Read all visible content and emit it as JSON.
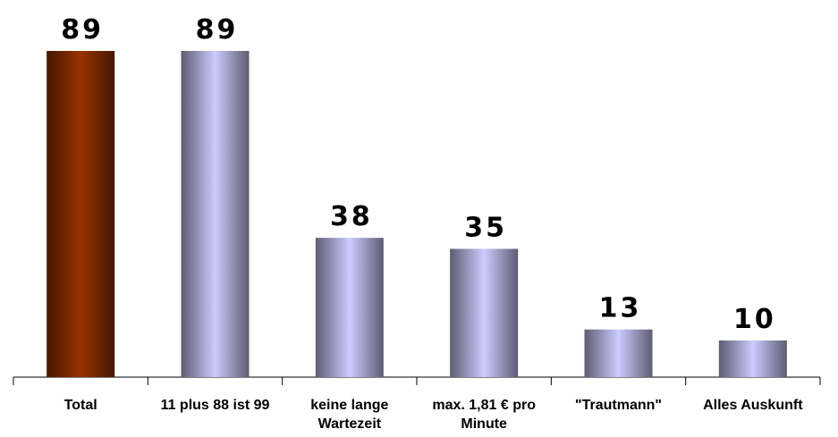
{
  "chart_data": {
    "type": "bar",
    "categories": [
      "Total",
      "11 plus 88 ist 99",
      "keine lange Wartezeit",
      "max. 1,81 € pro Minute",
      "\"Trautmann\"",
      "Alles Auskunft"
    ],
    "values": [
      89,
      89,
      38,
      35,
      13,
      10
    ],
    "colors": [
      "#993300",
      "#ccccff",
      "#ccccff",
      "#ccccff",
      "#ccccff",
      "#ccccff"
    ]
  }
}
